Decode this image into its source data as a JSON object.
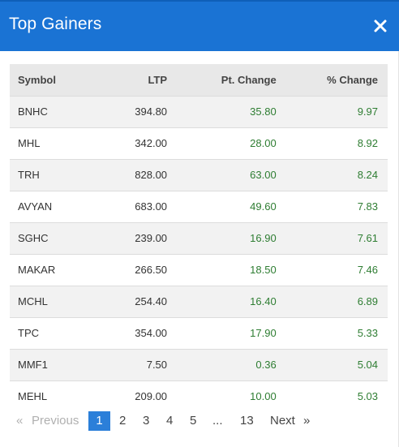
{
  "modal": {
    "title": "Top Gainers",
    "close_icon": "close-icon",
    "close_glyph": "✕"
  },
  "table": {
    "columns": [
      "Symbol",
      "LTP",
      "Pt. Change",
      "% Change"
    ],
    "rows": [
      {
        "symbol": "BNHC",
        "ltp": "394.80",
        "pt_change": "35.80",
        "pct_change": "9.97"
      },
      {
        "symbol": "MHL",
        "ltp": "342.00",
        "pt_change": "28.00",
        "pct_change": "8.92"
      },
      {
        "symbol": "TRH",
        "ltp": "828.00",
        "pt_change": "63.00",
        "pct_change": "8.24"
      },
      {
        "symbol": "AVYAN",
        "ltp": "683.00",
        "pt_change": "49.60",
        "pct_change": "7.83"
      },
      {
        "symbol": "SGHC",
        "ltp": "239.00",
        "pt_change": "16.90",
        "pct_change": "7.61"
      },
      {
        "symbol": "MAKAR",
        "ltp": "266.50",
        "pt_change": "18.50",
        "pct_change": "7.46"
      },
      {
        "symbol": "MCHL",
        "ltp": "254.40",
        "pt_change": "16.40",
        "pct_change": "6.89"
      },
      {
        "symbol": "TPC",
        "ltp": "354.00",
        "pt_change": "17.90",
        "pct_change": "5.33"
      },
      {
        "symbol": "MMF1",
        "ltp": "7.50",
        "pt_change": "0.36",
        "pct_change": "5.04"
      },
      {
        "symbol": "MEHL",
        "ltp": "209.00",
        "pt_change": "10.00",
        "pct_change": "5.03"
      }
    ]
  },
  "pagination": {
    "prev_arrow": "«",
    "prev_label": "Previous",
    "pages": [
      "1",
      "2",
      "3",
      "4",
      "5"
    ],
    "ellipsis": "...",
    "last_page": "13",
    "next_label": "Next",
    "next_arrow": "»",
    "current_page": "1"
  },
  "colors": {
    "header_bg": "#1a73d4",
    "positive": "#2e7d32",
    "active_page": "#2b7fd9"
  }
}
